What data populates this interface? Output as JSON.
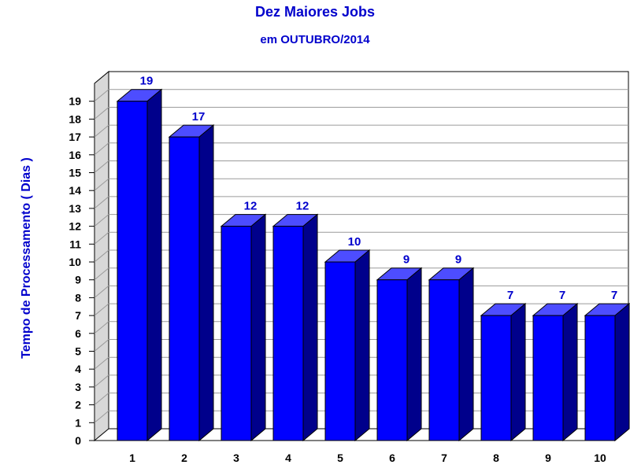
{
  "chart_data": {
    "type": "bar",
    "title": "Dez Maiores Jobs",
    "subtitle": "em OUTUBRO/2014",
    "ylabel": "Tempo de Processamento ( Dias )",
    "xlabel": "",
    "categories": [
      "1",
      "2",
      "3",
      "4",
      "5",
      "6",
      "7",
      "8",
      "9",
      "10"
    ],
    "values": [
      19,
      17,
      12,
      12,
      10,
      9,
      9,
      7,
      7,
      7
    ],
    "ylim": [
      0,
      19
    ],
    "yticks": [
      "0",
      "1",
      "2",
      "3",
      "4",
      "5",
      "6",
      "7",
      "8",
      "9",
      "10",
      "11",
      "12",
      "13",
      "14",
      "15",
      "16",
      "17",
      "18",
      "19"
    ],
    "grid": true,
    "style": "3d",
    "colors": {
      "bar_front": "#0000ff",
      "bar_top": "#4d4dff",
      "bar_side": "#00008b",
      "title": "#0000cc",
      "grid": "#9a9a9a",
      "back_wall": "#ffffff",
      "side_wall": "#d8d8d8"
    }
  }
}
